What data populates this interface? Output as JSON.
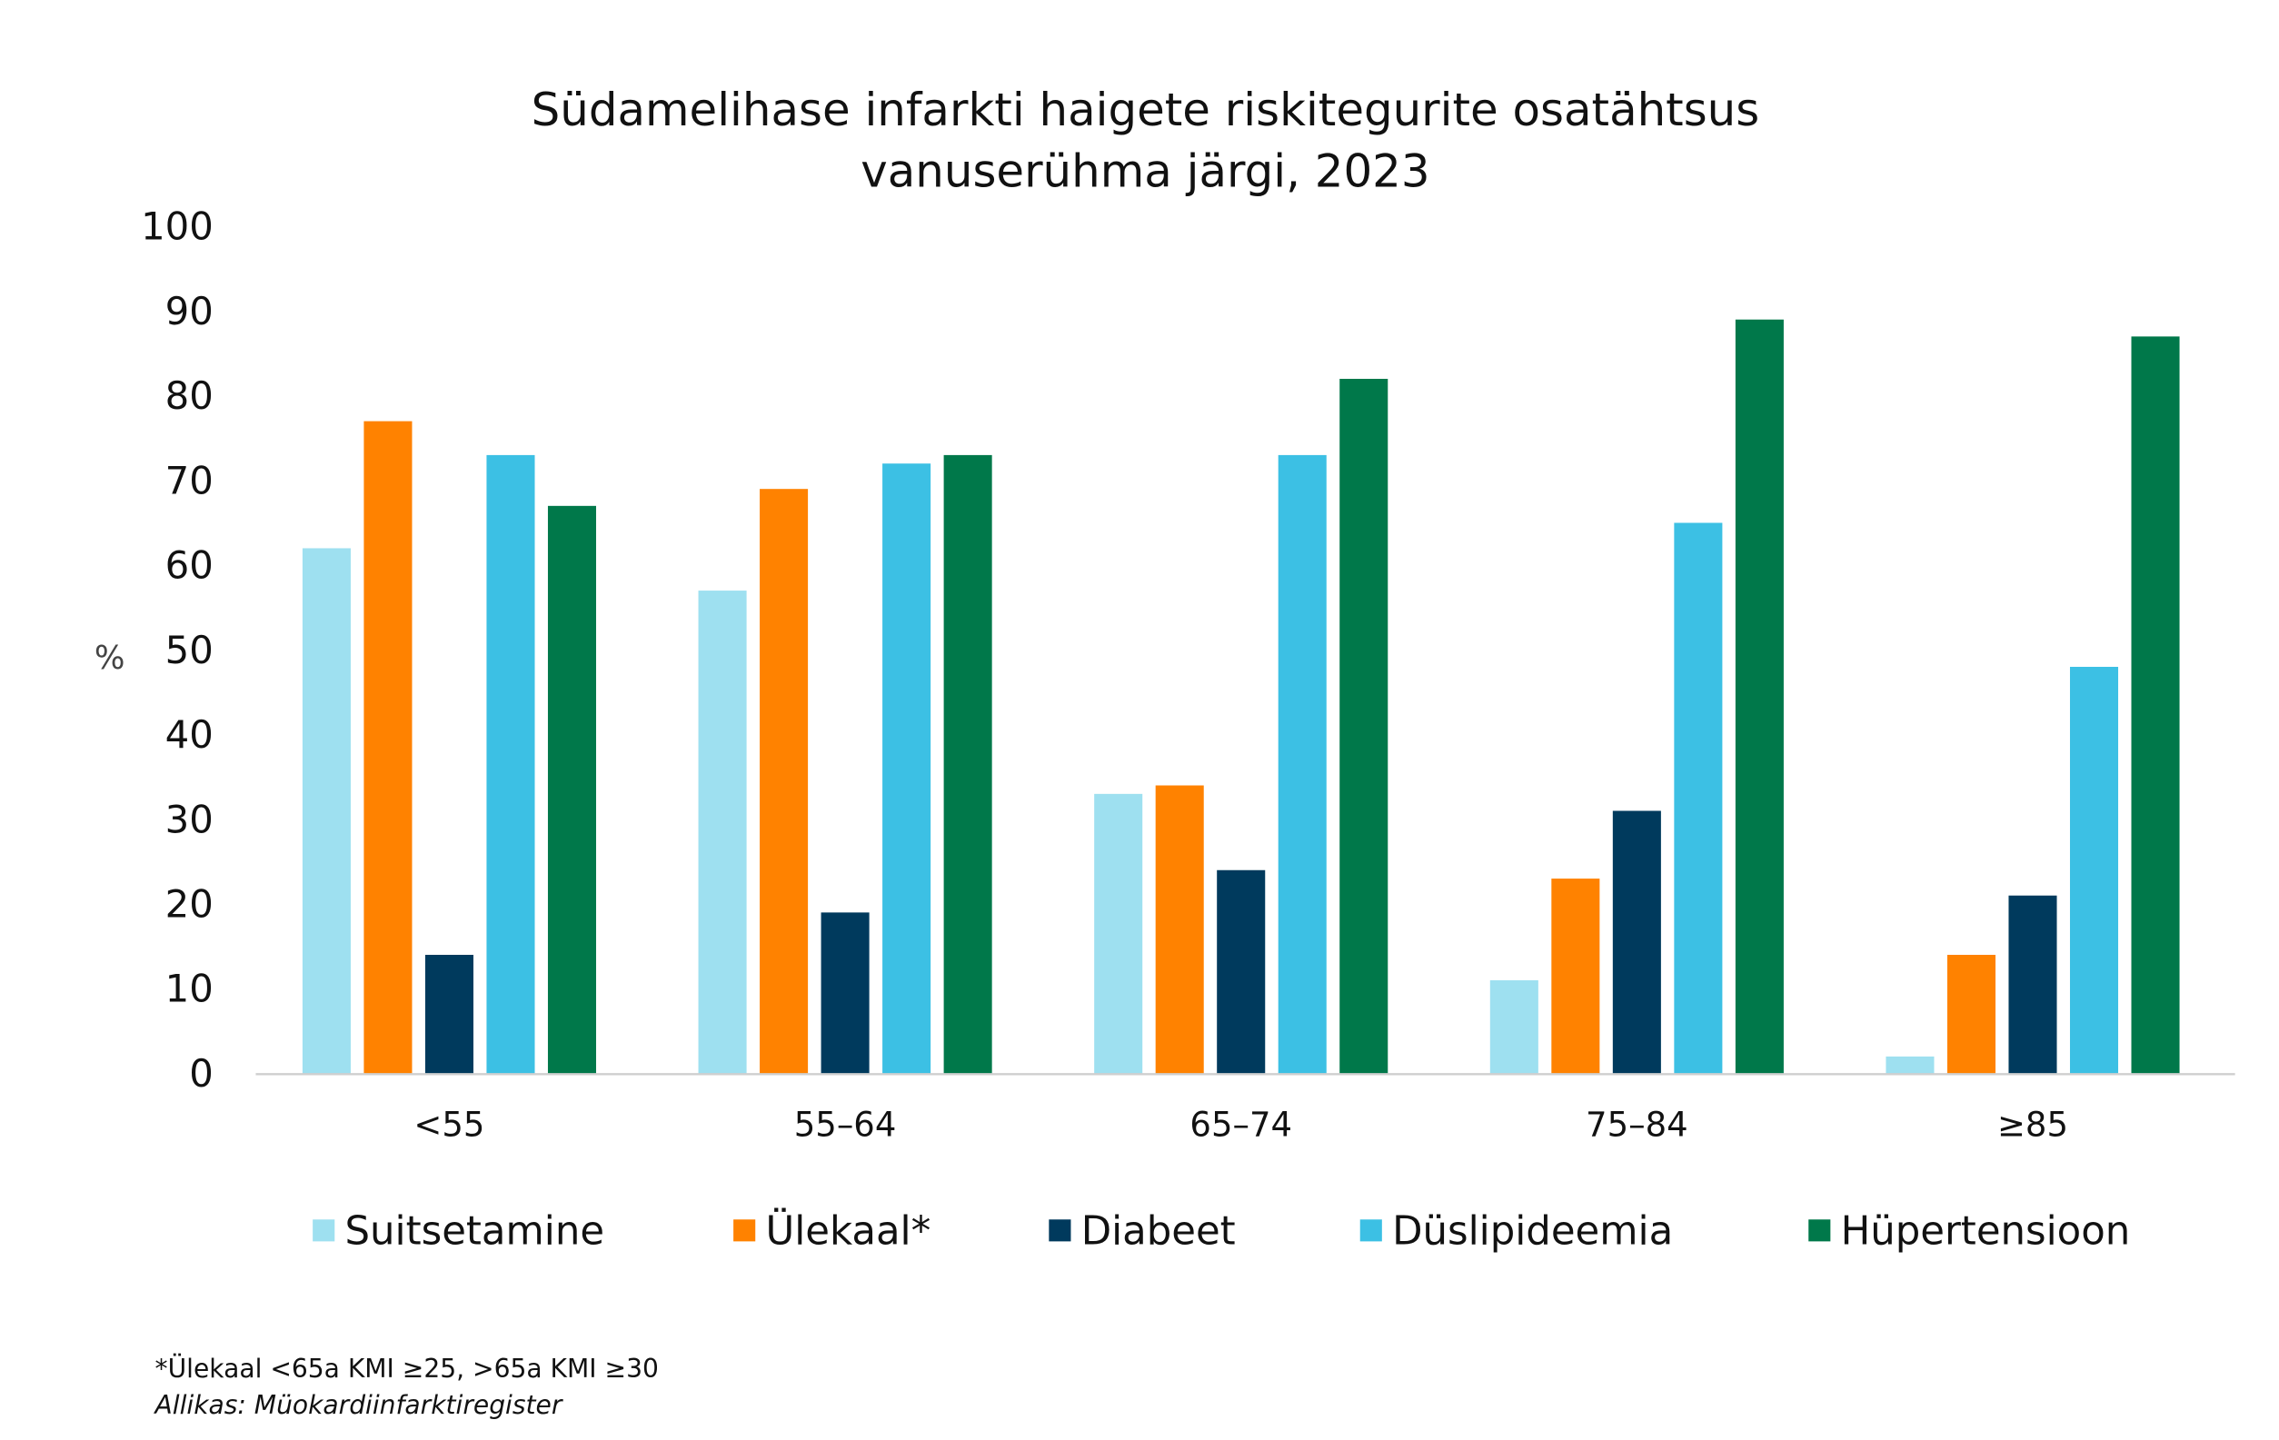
{
  "chart_data": {
    "type": "bar",
    "title": [
      "Südamelihase infarkti haigete riskitegurite osatähtsus",
      "vanuserühma järgi, 2023"
    ],
    "ylabel": "%",
    "xlabel": "",
    "ylim": [
      0,
      100
    ],
    "yticks": [
      "0",
      "10",
      "20",
      "30",
      "40",
      "50",
      "60",
      "70",
      "80",
      "90",
      "100"
    ],
    "grid": false,
    "legend_position": "bottom",
    "categories": [
      "<55",
      "55–64",
      "65–74",
      "75–84",
      "≥85"
    ],
    "series": [
      {
        "name": "Suitsetamine",
        "color": "#9EE0F0",
        "values": [
          62,
          57,
          33,
          11,
          2
        ]
      },
      {
        "name": "Ülekaal*",
        "color": "#FF8200",
        "values": [
          77,
          69,
          34,
          23,
          14
        ]
      },
      {
        "name": "Diabeet",
        "color": "#003A5D",
        "values": [
          14,
          19,
          24,
          31,
          21
        ]
      },
      {
        "name": "Düslipideemia",
        "color": "#3CC0E4",
        "values": [
          73,
          72,
          73,
          65,
          48
        ]
      },
      {
        "name": "Hüpertensioon",
        "color": "#00784A",
        "values": [
          67,
          73,
          82,
          89,
          87
        ]
      }
    ]
  },
  "footnote": "*Ülekaal <65a KMI ≥25, >65a KMI ≥30",
  "source": "Allikas: Müokardiinfarktiregister"
}
